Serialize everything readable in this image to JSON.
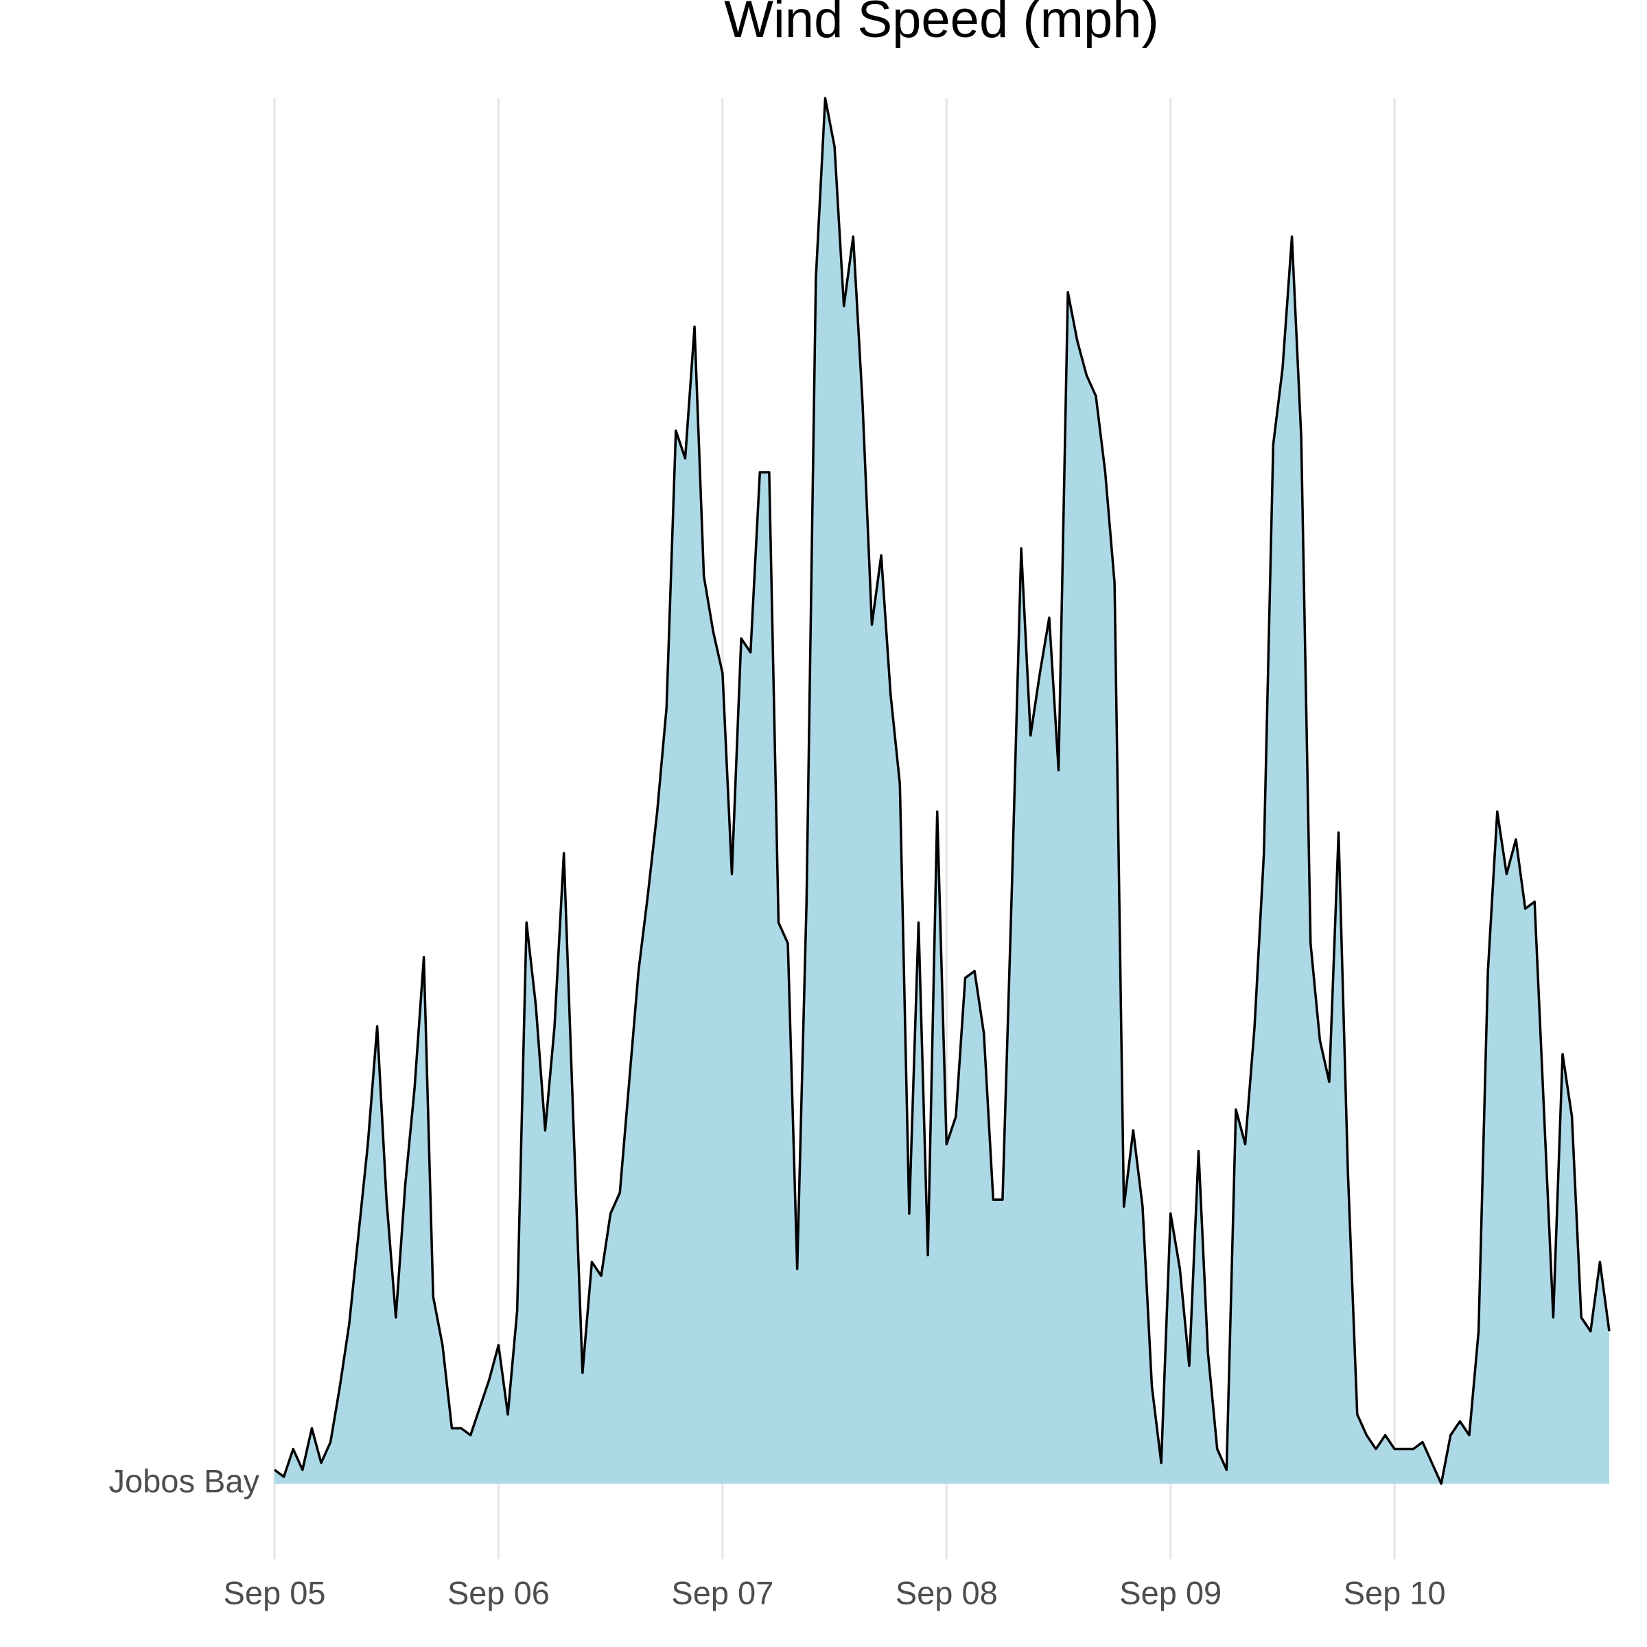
{
  "chart_data": {
    "type": "ridgeline",
    "title": "Wind Speed (mph)",
    "x": [
      0,
      1,
      2,
      3,
      4,
      5,
      6,
      7,
      8,
      9,
      10,
      11,
      12,
      13,
      14,
      15,
      16,
      17,
      18,
      19,
      20,
      21,
      22,
      23,
      24,
      25,
      26,
      27,
      28,
      29,
      30,
      31,
      32,
      33,
      34,
      35,
      36,
      37,
      38,
      39,
      40,
      41,
      42,
      43,
      44,
      45,
      46,
      47,
      48,
      49,
      50,
      51,
      52,
      53,
      54,
      55,
      56,
      57,
      58,
      59,
      60,
      61,
      62,
      63,
      64,
      65,
      66,
      67,
      68,
      69,
      70,
      71,
      72,
      73,
      74,
      75,
      76,
      77,
      78,
      79,
      80,
      81,
      82,
      83,
      84,
      85,
      86,
      87,
      88,
      89,
      90,
      91,
      92,
      93,
      94,
      95,
      96,
      97,
      98,
      99,
      100,
      101,
      102,
      103,
      104,
      105,
      106,
      107,
      108,
      109,
      110,
      111,
      112,
      113,
      114,
      115,
      116,
      117,
      118,
      119,
      120,
      121,
      122,
      123,
      124,
      125,
      126,
      127,
      128,
      129,
      130,
      131,
      132,
      133,
      134,
      135,
      136,
      137,
      138,
      139,
      140,
      141,
      142,
      143
    ],
    "series": [
      {
        "name": "Jobos Bay",
        "color": "#add8e6",
        "line_color": "#000000",
        "values": [
          0.2,
          0.1,
          0.5,
          0.2,
          0.8,
          0.3,
          0.6,
          1.4,
          2.3,
          3.6,
          4.9,
          6.6,
          4.1,
          2.4,
          4.3,
          5.7,
          7.6,
          2.7,
          2.0,
          0.8,
          0.8,
          0.7,
          1.1,
          1.5,
          2.0,
          1.0,
          2.5,
          8.1,
          6.9,
          5.1,
          6.6,
          9.1,
          5.3,
          1.6,
          3.2,
          3.0,
          3.9,
          4.2,
          5.8,
          7.4,
          8.5,
          9.7,
          11.2,
          15.2,
          14.8,
          16.7,
          13.1,
          12.3,
          11.7,
          8.8,
          12.2,
          12.0,
          14.6,
          14.6,
          8.1,
          7.8,
          3.1,
          8.4,
          17.4,
          20.0,
          19.3,
          17.0,
          18.0,
          15.6,
          12.4,
          13.4,
          11.4,
          10.1,
          3.9,
          8.1,
          3.3,
          9.7,
          4.9,
          5.3,
          7.3,
          7.4,
          6.5,
          4.1,
          4.1,
          8.6,
          13.5,
          10.8,
          11.7,
          12.5,
          10.3,
          17.2,
          16.5,
          16.0,
          15.7,
          14.6,
          13.0,
          4.0,
          5.1,
          4.0,
          1.4,
          0.3,
          3.9,
          3.1,
          1.7,
          4.8,
          1.9,
          0.5,
          0.2,
          5.4,
          4.9,
          6.6,
          9.1,
          15.0,
          16.1,
          18.0,
          15.1,
          7.8,
          6.4,
          5.8,
          9.4,
          4.5,
          1.0,
          0.7,
          0.5,
          0.7,
          0.5,
          0.5,
          0.5,
          0.6,
          0.3,
          0,
          0.7,
          0.9,
          0.7,
          2.2,
          7.4,
          9.7,
          8.8,
          9.3,
          8.3,
          8.4,
          5.4,
          2.4,
          6.2,
          5.3,
          2.4,
          2.2,
          3.2,
          2.2
        ]
      }
    ],
    "xlim": [
      0,
      143
    ],
    "xticks": [
      {
        "value": 0,
        "label": "Sep 05"
      },
      {
        "value": 24,
        "label": "Sep 06"
      },
      {
        "value": 48,
        "label": "Sep 07"
      },
      {
        "value": 72,
        "label": "Sep 08"
      },
      {
        "value": 96,
        "label": "Sep 09"
      },
      {
        "value": 120,
        "label": "Sep 10"
      }
    ],
    "ylim": [
      0,
      20
    ],
    "grid": true
  }
}
